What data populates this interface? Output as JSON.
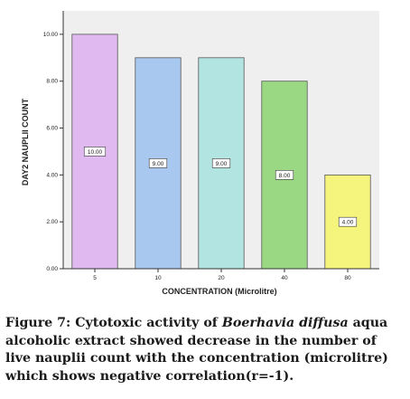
{
  "chart_data": {
    "type": "bar",
    "categories": [
      "5",
      "10",
      "20",
      "40",
      "80"
    ],
    "values": [
      10.0,
      9.0,
      9.0,
      8.0,
      4.0
    ],
    "data_labels": [
      "10.00",
      "9.00",
      "9.00",
      "8.00",
      "4.00"
    ],
    "xlabel": "CONCENTRATION (Microlitre)",
    "ylabel": "DAY2 NAUPLII COUNT",
    "ylim": [
      0,
      11
    ],
    "yticks": [
      0,
      2,
      4,
      6,
      8,
      10
    ],
    "ytick_labels": [
      "0.00",
      "2.00",
      "4.00",
      "6.00",
      "8.00",
      "10.00"
    ],
    "grid": false,
    "colors": [
      "#e0b9f1",
      "#a9c8ef",
      "#b2e5e2",
      "#9bd884",
      "#f5f47c"
    ],
    "plot_background": "#efefef"
  },
  "caption": {
    "label": "Figure 7:",
    "text_before": "Cytotoxic activity of",
    "species": "Boerhavia diffusa",
    "text_after": "aqua alcoholic extract showed decrease in the number of live nauplii count with the concentration (microlitre) which shows negative correlation(r=-1)."
  }
}
